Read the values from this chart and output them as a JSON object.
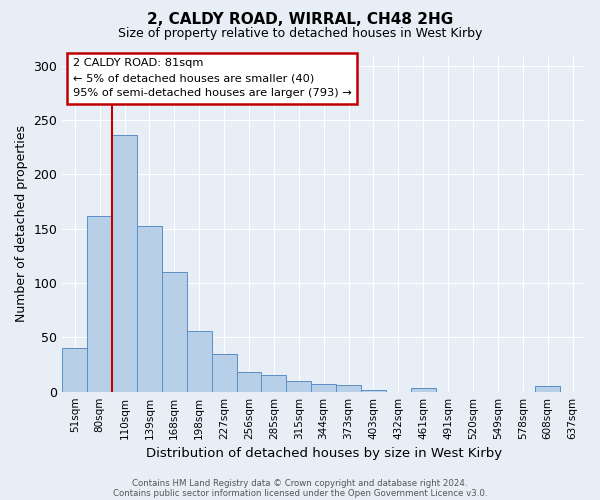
{
  "title1": "2, CALDY ROAD, WIRRAL, CH48 2HG",
  "title2": "Size of property relative to detached houses in West Kirby",
  "xlabel": "Distribution of detached houses by size in West Kirby",
  "ylabel": "Number of detached properties",
  "categories": [
    "51sqm",
    "80sqm",
    "110sqm",
    "139sqm",
    "168sqm",
    "198sqm",
    "227sqm",
    "256sqm",
    "285sqm",
    "315sqm",
    "344sqm",
    "373sqm",
    "403sqm",
    "432sqm",
    "461sqm",
    "491sqm",
    "520sqm",
    "549sqm",
    "578sqm",
    "608sqm",
    "637sqm"
  ],
  "bar_heights": [
    40,
    162,
    236,
    153,
    110,
    56,
    35,
    18,
    15,
    10,
    7,
    6,
    2,
    0,
    3,
    0,
    0,
    0,
    0,
    5,
    0
  ],
  "bar_color": "#b8cfe8",
  "bar_edge_color": "#5b8ec4",
  "vline_color": "#c00000",
  "ylim": [
    0,
    310
  ],
  "yticks": [
    0,
    50,
    100,
    150,
    200,
    250,
    300
  ],
  "annotation_line1": "2 CALDY ROAD: 81sqm",
  "annotation_line2": "← 5% of detached houses are smaller (40)",
  "annotation_line3": "95% of semi-detached houses are larger (793) →",
  "footnote1": "Contains HM Land Registry data © Crown copyright and database right 2024.",
  "footnote2": "Contains public sector information licensed under the Open Government Licence v3.0.",
  "background_color": "#e8eef6",
  "plot_bg_color": "#e8eef6"
}
